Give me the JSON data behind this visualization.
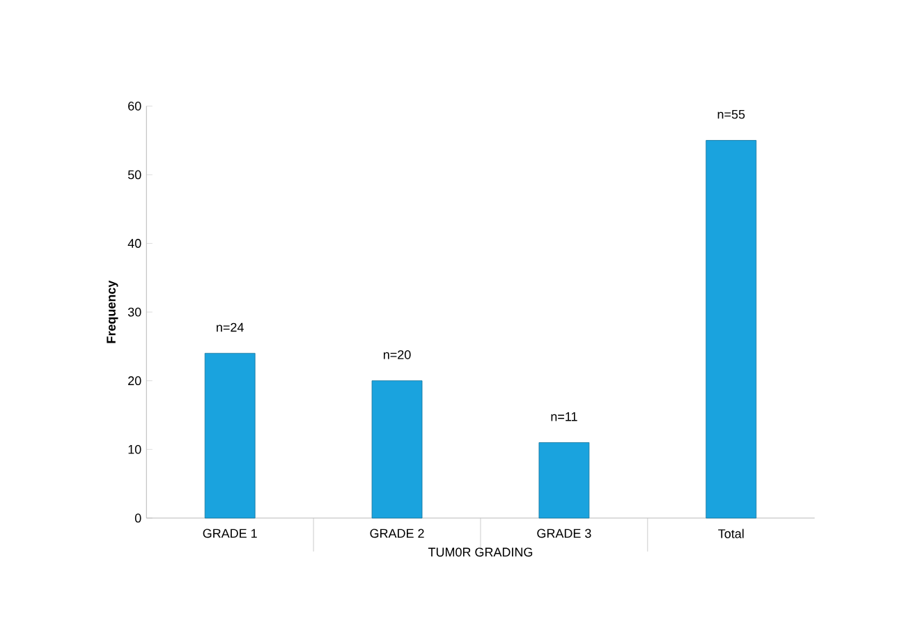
{
  "chart_data": {
    "type": "bar",
    "xlabel": "TUM0R GRADING",
    "ylabel": "Frequency",
    "categories": [
      "GRADE 1",
      "GRADE 2",
      "GRADE 3",
      "Total"
    ],
    "values": [
      24,
      20,
      11,
      55
    ],
    "value_labels": [
      "n=24",
      "n=20",
      "n=11",
      null
    ],
    "annotations": [
      {
        "text": "n=55",
        "x": "Total",
        "y": 55
      }
    ],
    "color": "#1aa3de",
    "ylim": [
      0,
      60
    ],
    "yticks": [
      0,
      10,
      20,
      30,
      40,
      50,
      60
    ],
    "grid": false
  }
}
